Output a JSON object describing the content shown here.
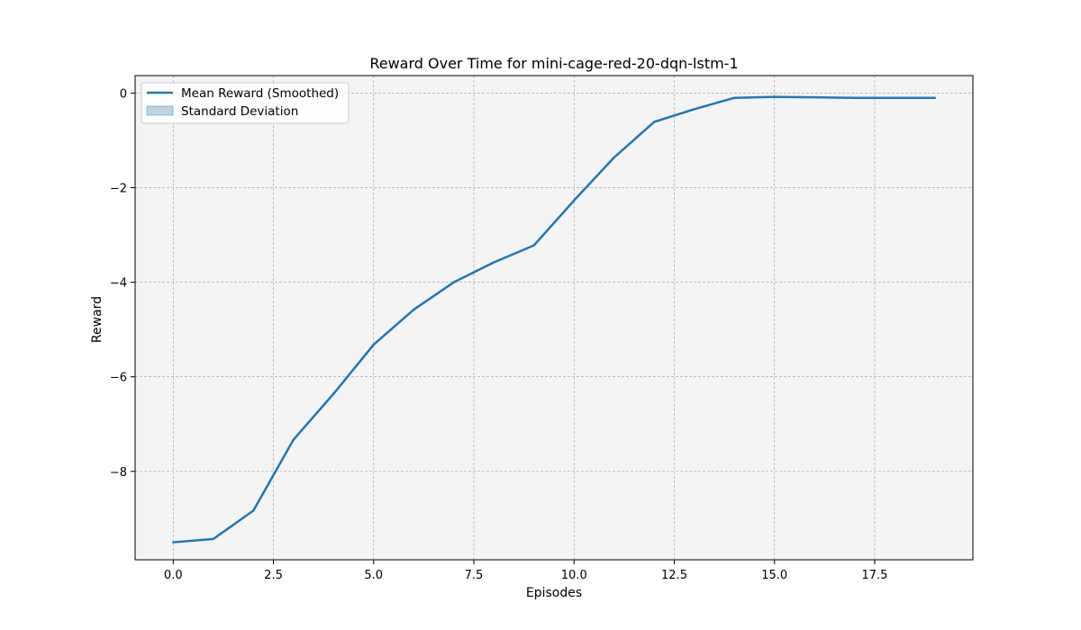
{
  "chart_data": {
    "type": "line",
    "title": "Reward Over Time for mini-cage-red-20-dqn-lstm-1",
    "xlabel": "Episodes",
    "ylabel": "Reward",
    "xlim": [
      -0.95,
      19.95
    ],
    "ylim": [
      -9.87,
      0.37
    ],
    "xticks": [
      0.0,
      2.5,
      5.0,
      7.5,
      10.0,
      12.5,
      15.0,
      17.5
    ],
    "xtick_labels": [
      "0.0",
      "2.5",
      "5.0",
      "7.5",
      "10.0",
      "12.5",
      "15.0",
      "17.5"
    ],
    "yticks": [
      0,
      -2,
      -4,
      -6,
      -8
    ],
    "ytick_labels": [
      "0",
      "−2",
      "−4",
      "−6",
      "−8"
    ],
    "grid": true,
    "legend_position": "top-left",
    "x": [
      0,
      1,
      2,
      3,
      4,
      5,
      6,
      7,
      8,
      9,
      10,
      11,
      12,
      13,
      14,
      15,
      16,
      17,
      18,
      19
    ],
    "series": [
      {
        "name": "Mean Reward (Smoothed)",
        "color": "#1f77b4",
        "values": [
          -9.5,
          -9.43,
          -8.83,
          -7.33,
          -6.36,
          -5.32,
          -4.58,
          -4.0,
          -3.58,
          -3.22,
          -2.27,
          -1.36,
          -0.61,
          -0.34,
          -0.1,
          -0.08,
          -0.09,
          -0.1,
          -0.1,
          -0.1
        ]
      }
    ],
    "band": {
      "name": "Standard Deviation",
      "color": "#1f77b4",
      "opacity": 0.3
    },
    "plot_background": "#f4f4f4",
    "grid_color": "#9a9a9a"
  }
}
